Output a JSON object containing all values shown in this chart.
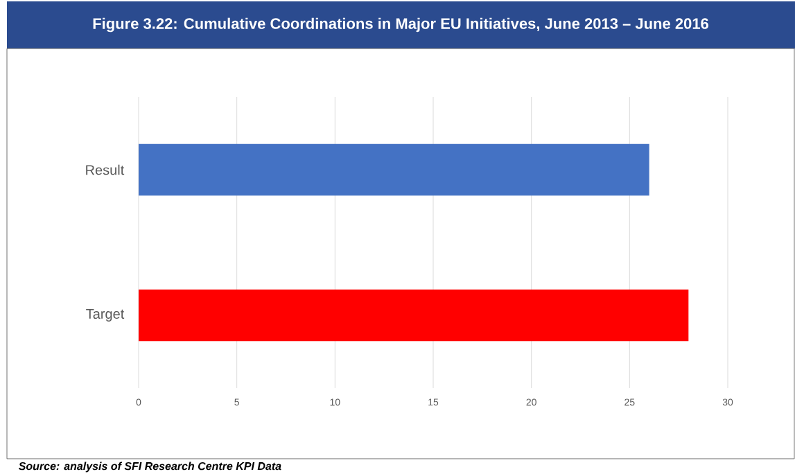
{
  "chart_data": {
    "type": "bar",
    "orientation": "horizontal",
    "title": "Figure 3.22: Cumulative Coordinations in Major EU Initiatives, June 2013 – June 2016",
    "categories": [
      "Result",
      "Target"
    ],
    "values": [
      26,
      28
    ],
    "colors": [
      "#4472c4",
      "#ff0000"
    ],
    "xlim": [
      0,
      30
    ],
    "xticks": [
      0,
      5,
      10,
      15,
      20,
      25,
      30
    ],
    "grid": "x",
    "annotations": [
      "Source: analysis of SFI Research Centre KPI Data"
    ]
  }
}
